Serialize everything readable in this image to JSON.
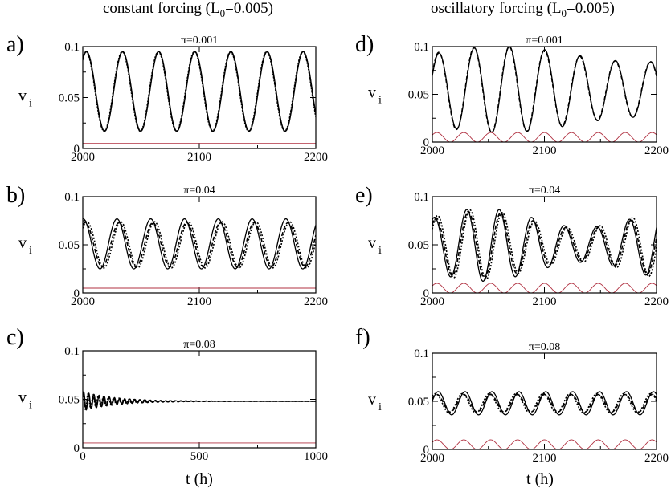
{
  "column_titles": {
    "left": {
      "text": "constant forcing (L",
      "sub": "0",
      "rest": "=0.005)"
    },
    "right": {
      "text": "oscillatory forcing (L",
      "sub": "0",
      "rest": "=0.005)"
    }
  },
  "panel_labels": [
    "a)",
    "b)",
    "c)",
    "d)",
    "e)",
    "f)"
  ],
  "colors": {
    "model": "#000000",
    "forcing": "#b03040"
  },
  "chart_data": [
    {
      "id": "a",
      "type": "line",
      "title": "π=0.001",
      "ylabel": "v",
      "ylabel_sub": "i",
      "xlabel": "",
      "xlim": [
        2000,
        2200
      ],
      "ylim": [
        0,
        0.1
      ],
      "xticks": [
        "2000",
        "2100",
        "2200"
      ],
      "yticks": [
        "0",
        "0.05",
        "0.1"
      ],
      "forcing": "constant",
      "series": [
        {
          "style": "solid",
          "mean": 0.056,
          "amp": 0.039,
          "period": 31,
          "phase": 0.9,
          "decay": 0
        },
        {
          "style": "dashed",
          "mean": 0.056,
          "amp": 0.039,
          "period": 31,
          "phase": 0.95,
          "decay": 0
        },
        {
          "style": "dotted",
          "mean": 0.056,
          "amp": 0.039,
          "period": 31,
          "phase": 1.0,
          "decay": 0
        },
        {
          "style": "forcing",
          "mean": 0.005,
          "amp": 0,
          "period": 31,
          "phase": 0,
          "decay": 0
        }
      ]
    },
    {
      "id": "b",
      "type": "line",
      "title": "π=0.04",
      "ylabel": "v",
      "ylabel_sub": "i",
      "xlabel": "",
      "xlim": [
        2000,
        2200
      ],
      "ylim": [
        0,
        0.1
      ],
      "xticks": [
        "2000",
        "2100",
        "2200"
      ],
      "yticks": [
        "0",
        "0.05",
        "0.1"
      ],
      "forcing": "constant",
      "series": [
        {
          "style": "solid",
          "mean": 0.051,
          "amp": 0.026,
          "period": 29,
          "phase": 1.5,
          "decay": 0
        },
        {
          "style": "dashed",
          "mean": 0.05,
          "amp": 0.023,
          "period": 29,
          "phase": 1.1,
          "decay": 0
        },
        {
          "style": "dotted",
          "mean": 0.05,
          "amp": 0.024,
          "period": 29,
          "phase": 0.8,
          "decay": 0
        },
        {
          "style": "forcing",
          "mean": 0.005,
          "amp": 0,
          "period": 29,
          "phase": 0,
          "decay": 0
        }
      ]
    },
    {
      "id": "c",
      "type": "line",
      "title": "π=0.08",
      "ylabel": "v",
      "ylabel_sub": "i",
      "xlabel": "t (h)",
      "xlim": [
        0,
        1000
      ],
      "ylim": [
        0,
        0.1
      ],
      "xticks": [
        "0",
        "500",
        "1000"
      ],
      "yticks": [
        "0",
        "0.05",
        "0.1"
      ],
      "forcing": "constant",
      "series": [
        {
          "style": "solid",
          "mean": 0.048,
          "amp": 0.01,
          "period": 22,
          "phase": 0.4,
          "decay": 140
        },
        {
          "style": "dashed",
          "mean": 0.048,
          "amp": 0.009,
          "period": 22,
          "phase": 0.9,
          "decay": 140
        },
        {
          "style": "dotted",
          "mean": 0.048,
          "amp": 0.009,
          "period": 22,
          "phase": 1.4,
          "decay": 140
        },
        {
          "style": "forcing",
          "mean": 0.005,
          "amp": 0,
          "period": 22,
          "phase": 0,
          "decay": 0
        }
      ]
    },
    {
      "id": "d",
      "type": "line",
      "title": "π=0.001",
      "ylabel": "v",
      "ylabel_sub": "i",
      "xlabel": "",
      "xlim": [
        2000,
        2200
      ],
      "ylim": [
        0,
        0.1
      ],
      "xticks": [
        "2000",
        "2100",
        "2200"
      ],
      "yticks": [
        "0",
        "0.05",
        "0.1"
      ],
      "forcing": "oscillatory",
      "series": [
        {
          "style": "solid",
          "mean": 0.055,
          "amp": 0.037,
          "period": 31.5,
          "phase": 0.4,
          "decay": 0,
          "mod": 0.22,
          "modperiod": 250
        },
        {
          "style": "dashed",
          "mean": 0.055,
          "amp": 0.037,
          "period": 31.5,
          "phase": 0.45,
          "decay": 0,
          "mod": 0.22,
          "modperiod": 250
        },
        {
          "style": "forcing",
          "mean": 0.005,
          "amp": 0.005,
          "period": 24,
          "phase": 0.5,
          "decay": 0
        }
      ]
    },
    {
      "id": "e",
      "type": "line",
      "title": "π=0.04",
      "ylabel": "v",
      "ylabel_sub": "i",
      "xlabel": "",
      "xlim": [
        2000,
        2200
      ],
      "ylim": [
        0,
        0.1
      ],
      "xticks": [
        "2000",
        "2100",
        "2200"
      ],
      "yticks": [
        "0",
        "0.05",
        "0.1"
      ],
      "forcing": "oscillatory",
      "series": [
        {
          "style": "solid",
          "mean": 0.05,
          "amp": 0.028,
          "period": 29,
          "phase": 1.2,
          "decay": 0,
          "mod": 0.35,
          "modperiod": 180
        },
        {
          "style": "dashed",
          "mean": 0.05,
          "amp": 0.026,
          "period": 29,
          "phase": 0.9,
          "decay": 0,
          "mod": 0.35,
          "modperiod": 180
        },
        {
          "style": "dotted",
          "mean": 0.05,
          "amp": 0.027,
          "period": 29,
          "phase": 0.6,
          "decay": 0,
          "mod": 0.35,
          "modperiod": 180
        },
        {
          "style": "forcing",
          "mean": 0.005,
          "amp": 0.005,
          "period": 24,
          "phase": 0.5,
          "decay": 0
        }
      ]
    },
    {
      "id": "f",
      "type": "line",
      "title": "π=0.08",
      "ylabel": "v",
      "ylabel_sub": "i",
      "xlabel": "t (h)",
      "xlim": [
        2000,
        2200
      ],
      "ylim": [
        0,
        0.1
      ],
      "xticks": [
        "2000",
        "2100",
        "2200"
      ],
      "yticks": [
        "0",
        "0.05",
        "0.1"
      ],
      "forcing": "oscillatory",
      "series": [
        {
          "style": "solid",
          "mean": 0.048,
          "amp": 0.012,
          "period": 24,
          "phase": 0.2,
          "decay": 0
        },
        {
          "style": "dashed",
          "mean": 0.048,
          "amp": 0.009,
          "period": 24,
          "phase": 0.5,
          "decay": 0
        },
        {
          "style": "dotted",
          "mean": 0.048,
          "amp": 0.01,
          "period": 24,
          "phase": 0.8,
          "decay": 0
        },
        {
          "style": "forcing",
          "mean": 0.005,
          "amp": 0.005,
          "period": 24,
          "phase": 0.5,
          "decay": 0
        }
      ]
    }
  ]
}
